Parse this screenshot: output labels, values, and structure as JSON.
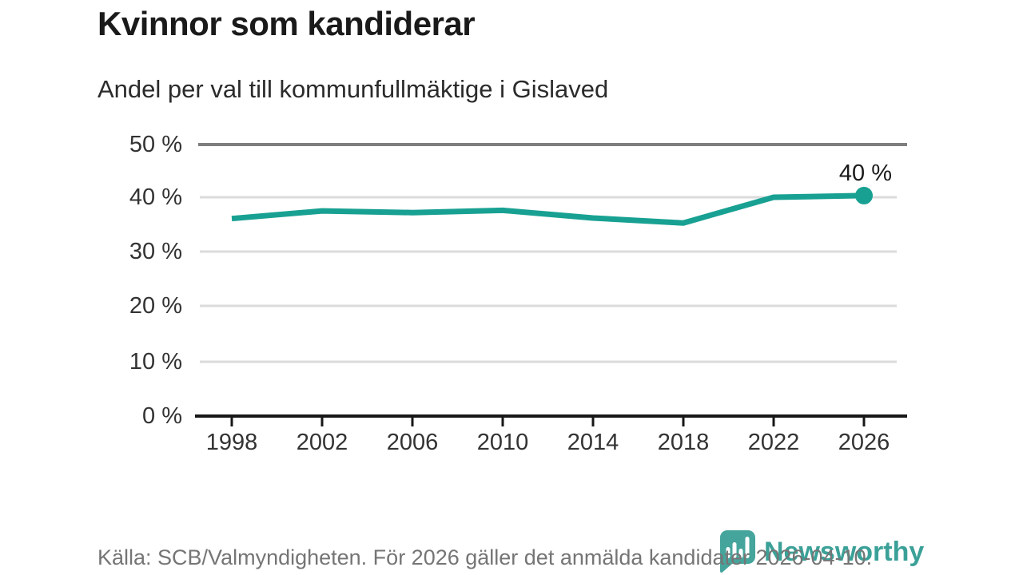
{
  "header": {
    "title": "Kvinnor som kandiderar",
    "subtitle": "Andel per val till kommunfullmäktige i Gislaved"
  },
  "chart_data": {
    "type": "line",
    "title": "Kvinnor som kandiderar",
    "subtitle": "Andel per val till kommunfullmäktige i Gislaved",
    "x": [
      "1998",
      "2002",
      "2006",
      "2010",
      "2014",
      "2018",
      "2022",
      "2026"
    ],
    "series": [
      {
        "name": "Kvinnor som kandiderar",
        "values": [
          36.1,
          37.5,
          37.2,
          37.6,
          36.2,
          35.3,
          40.0,
          40.3
        ]
      }
    ],
    "ylim": [
      0,
      50
    ],
    "yticks": [
      0,
      10,
      20,
      30,
      40,
      50
    ],
    "xlabel": "",
    "ylabel": "",
    "grid": "horizontal",
    "legend": "none",
    "last_point_label": "40 %",
    "line_color": "#18a192",
    "marker": "dot-on-last-point"
  },
  "axes": {
    "y_tick_labels": [
      "50 %",
      "40 %",
      "30 %",
      "20 %",
      "10 %",
      "0 %"
    ],
    "x_tick_labels": [
      "1998",
      "2002",
      "2006",
      "2010",
      "2014",
      "2018",
      "2022",
      "2026"
    ]
  },
  "annotation": {
    "last_point_label": "40 %"
  },
  "footer": {
    "source": "Källa: SCB/Valmyndigheten. För 2026 gäller det anmälda kandidater 2026-04-10."
  },
  "branding": {
    "logo_text": "Newsworthy",
    "logo_icon": "bar-chart-speech-bubble-icon",
    "logo_color": "#45a59c",
    "logo_text_color": "#3ba198"
  }
}
